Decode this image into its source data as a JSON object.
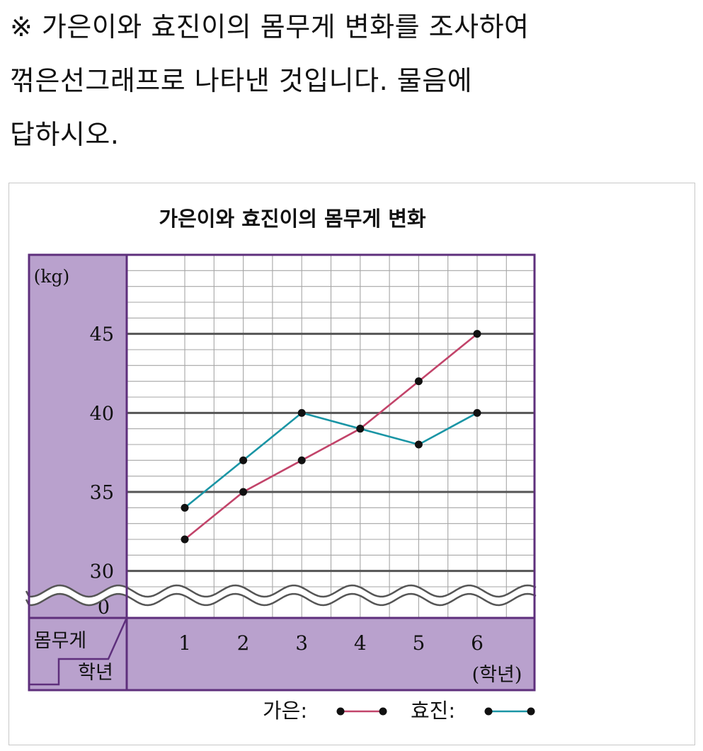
{
  "question": {
    "line1": "※ 가은이와 효진이의 몸무게 변화를 조사하여",
    "line2": "꺾은선그래프로 나타낸 것입니다. 물음에",
    "line3": "답하시오."
  },
  "chart_data": {
    "type": "line",
    "title": "가은이와 효진이의 몸무게 변화",
    "ylabel": "(kg)",
    "xlabel": "(학년)",
    "corner_top_label": "몸무게",
    "corner_bottom_label": "학년",
    "categories": [
      "1",
      "2",
      "3",
      "4",
      "5",
      "6"
    ],
    "yticks": [
      "45",
      "40",
      "35",
      "30",
      "0"
    ],
    "ylim": [
      29,
      50
    ],
    "axis_break": true,
    "series": [
      {
        "name": "가은",
        "values": [
          32,
          35,
          37,
          39,
          42,
          45
        ],
        "color": "#c2446a"
      },
      {
        "name": "효진",
        "values": [
          34,
          37,
          40,
          39,
          38,
          40
        ],
        "color": "#1a95a5"
      }
    ],
    "legend": [
      {
        "label": "가은:",
        "color": "#c2446a"
      },
      {
        "label": "효진:",
        "color": "#1a95a5"
      }
    ],
    "panel_color": "#b9a1cd",
    "border_color": "#5e2f7c",
    "grid": true
  }
}
